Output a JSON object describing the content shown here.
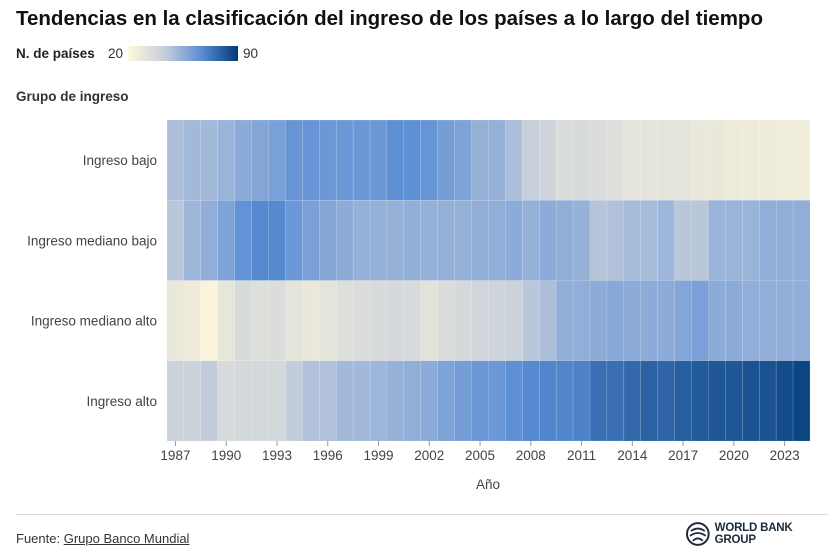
{
  "chart_data": {
    "type": "heatmap",
    "title": "Tendencias en la clasificación del ingreso de los países a lo largo del tiempo",
    "legend": {
      "label": "N. de países",
      "min": 20,
      "max": 90,
      "colors": [
        "#fff8dc",
        "#c6ceda",
        "#5b8ed6",
        "#003a75"
      ]
    },
    "ylabel": "Grupo de ingreso",
    "xlabel": "Año",
    "categories": [
      "Ingreso bajo",
      "Ingreso mediano bajo",
      "Ingreso mediano alto",
      "Ingreso alto"
    ],
    "x": [
      1987,
      1988,
      1989,
      1990,
      1991,
      1992,
      1993,
      1994,
      1995,
      1996,
      1997,
      1998,
      1999,
      2000,
      2001,
      2002,
      2003,
      2004,
      2005,
      2006,
      2007,
      2008,
      2009,
      2010,
      2011,
      2012,
      2013,
      2014,
      2015,
      2016,
      2017,
      2018,
      2019,
      2020,
      2021,
      2022,
      2023,
      2024
    ],
    "xticks": [
      "1987",
      "1990",
      "1993",
      "1996",
      "1999",
      "2002",
      "2005",
      "2008",
      "2011",
      "2014",
      "2017",
      "2020",
      "2023"
    ],
    "series": [
      {
        "name": "Ingreso bajo",
        "values": [
          49,
          51,
          51,
          53,
          56,
          58,
          60,
          64,
          64,
          63,
          63,
          63,
          63,
          66,
          66,
          64,
          61,
          59,
          54,
          54,
          49,
          43,
          40,
          35,
          36,
          35,
          34,
          31,
          31,
          31,
          31,
          29,
          29,
          27,
          27,
          27,
          26,
          26
        ]
      },
      {
        "name": "Ingreso mediano bajo",
        "values": [
          46,
          52,
          55,
          59,
          65,
          68,
          68,
          63,
          60,
          58,
          56,
          54,
          54,
          54,
          55,
          54,
          54,
          54,
          55,
          55,
          56,
          54,
          56,
          55,
          54,
          47,
          48,
          50,
          50,
          52,
          46,
          46,
          53,
          53,
          53,
          55,
          55,
          55
        ]
      },
      {
        "name": "Ingreso mediano alto",
        "values": [
          29,
          27,
          22,
          30,
          36,
          34,
          35,
          31,
          29,
          31,
          34,
          35,
          36,
          37,
          36,
          32,
          35,
          37,
          39,
          40,
          41,
          46,
          49,
          55,
          55,
          56,
          57,
          56,
          56,
          56,
          58,
          60,
          56,
          56,
          55,
          55,
          55,
          55
        ]
      },
      {
        "name": "Ingreso alto",
        "values": [
          41,
          41,
          44,
          36,
          38,
          38,
          38,
          44,
          48,
          48,
          51,
          51,
          52,
          54,
          55,
          56,
          59,
          61,
          63,
          63,
          66,
          68,
          69,
          69,
          70,
          75,
          75,
          77,
          79,
          78,
          80,
          81,
          82,
          82,
          83,
          83,
          85,
          87
        ]
      }
    ]
  },
  "footer": {
    "source_prefix": "Fuente: ",
    "source_link": "Grupo Banco Mundial",
    "logo_text": "WORLD BANK GROUP"
  }
}
